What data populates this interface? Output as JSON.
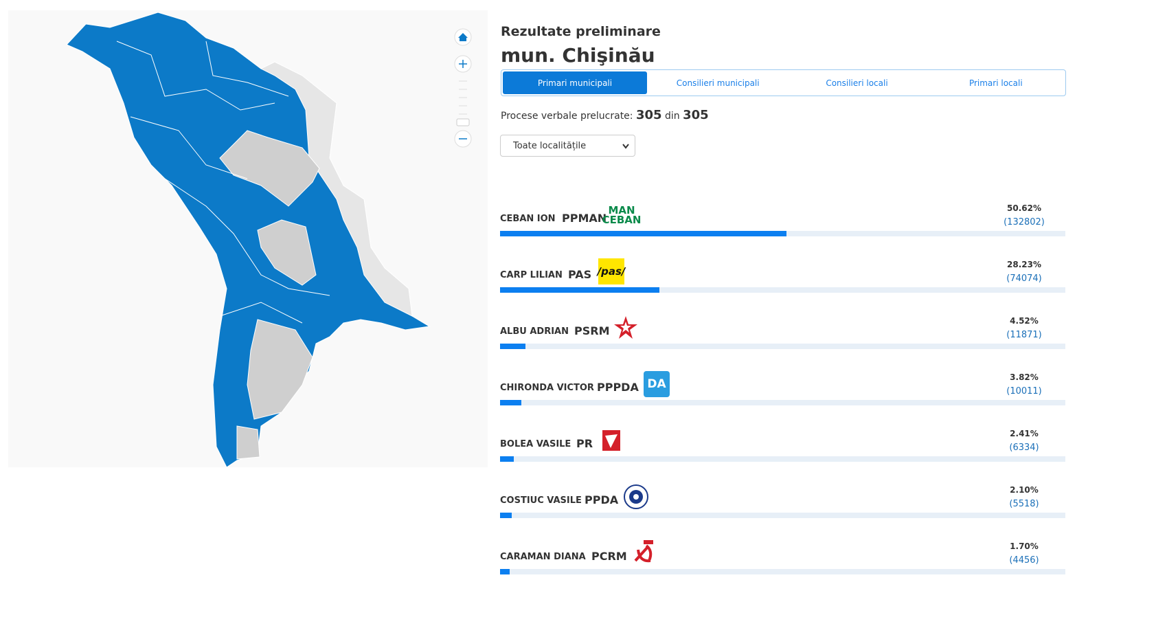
{
  "header": {
    "title": "Rezultate preliminare",
    "subtitle": "mun. Chişinău"
  },
  "tabs": [
    "Primari municipali",
    "Consilieri municipali",
    "Consilieri locali",
    "Primari locali"
  ],
  "processed": {
    "label": "Procese verbale prelucrate:",
    "done": "305",
    "connector": "din",
    "total": "305"
  },
  "filter": "Toate localitățile",
  "results": [
    {
      "name": "CEBAN ION",
      "party": "PPMAN",
      "percent": 50.62,
      "percent_label": "50.62%",
      "votes_label": "(132802)",
      "logo_text": [
        "MAN",
        "CEBAN"
      ]
    },
    {
      "name": "CARP LILIAN",
      "party": "PAS",
      "percent": 28.23,
      "percent_label": "28.23%",
      "votes_label": "(74074)",
      "logo_text": [
        "/pas/"
      ]
    },
    {
      "name": "ALBU ADRIAN",
      "party": "PSRM",
      "percent": 4.52,
      "percent_label": "4.52%",
      "votes_label": "(11871)"
    },
    {
      "name": "CHIRONDA VICTOR",
      "party": "PPPDA",
      "percent": 3.82,
      "percent_label": "3.82%",
      "votes_label": "(10011)",
      "logo_text": [
        "DA"
      ]
    },
    {
      "name": "BOLEA VASILE",
      "party": "PR",
      "percent": 2.41,
      "percent_label": "2.41%",
      "votes_label": "(6334)"
    },
    {
      "name": "COSTIUC VASILE",
      "party": "PPDA",
      "percent": 2.1,
      "percent_label": "2.10%",
      "votes_label": "(5518)"
    },
    {
      "name": "CARAMAN DIANA",
      "party": "PCRM",
      "percent": 1.7,
      "percent_label": "1.70%",
      "votes_label": "(4456)"
    }
  ]
}
